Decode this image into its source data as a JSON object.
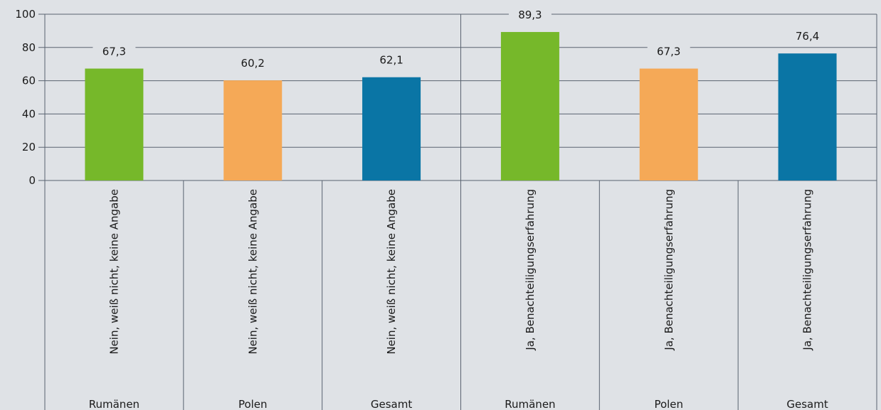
{
  "chart_data": {
    "type": "bar",
    "ylim": [
      0,
      100
    ],
    "yticks": [
      0,
      20,
      40,
      60,
      80,
      100
    ],
    "grid": true,
    "categories": [
      {
        "label": "Nein, weiß nicht, keine Angabe",
        "group": "Rumänen",
        "value": 67.3,
        "value_label": "67,3",
        "color": "#76b82a"
      },
      {
        "label": "Nein, weiß nicht, keine Angabe",
        "group": "Polen",
        "value": 60.2,
        "value_label": "60,2",
        "color": "#f5a957"
      },
      {
        "label": "Nein, weiß nicht, keine Angabe",
        "group": "Gesamt",
        "value": 62.1,
        "value_label": "62,1",
        "color": "#0a75a5"
      },
      {
        "label": "Ja, Benachteiligungserfahrung",
        "group": "Rumänen",
        "value": 89.3,
        "value_label": "89,3",
        "color": "#76b82a"
      },
      {
        "label": "Ja, Benachteiligungserfahrung",
        "group": "Polen",
        "value": 67.3,
        "value_label": "67,3",
        "color": "#f5a957"
      },
      {
        "label": "Ja, Benachteiligungserfahrung",
        "group": "Gesamt",
        "value": 76.4,
        "value_label": "76,4",
        "color": "#0a75a5"
      }
    ]
  }
}
